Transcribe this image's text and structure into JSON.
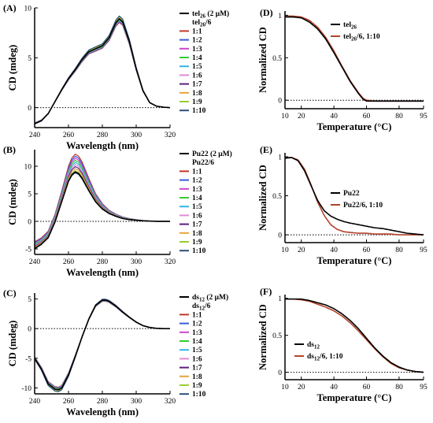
{
  "chart_data": [
    {
      "id": "A",
      "type": "line",
      "panel_label": "(A)",
      "xlabel": "Wavelength (nm)",
      "ylabel": "CD (mdeg)",
      "xlim": [
        240,
        320
      ],
      "ylim": [
        -2,
        10
      ],
      "xticks": [
        240,
        260,
        280,
        300,
        320
      ],
      "yticks": [
        0,
        5,
        10
      ],
      "zero_line": true,
      "legend": [
        {
          "label": "tel",
          "sub": "26",
          "suffix": " (2 μM)",
          "color": "#000000"
        },
        {
          "label": "tel",
          "sub": "26",
          "suffix": "/6",
          "color": "#000000",
          "no_line": true
        },
        {
          "label": "1:1",
          "color": "#c0392b"
        },
        {
          "label": "1:2",
          "color": "#3b5bdb"
        },
        {
          "label": "1:3",
          "color": "#cc44cc"
        },
        {
          "label": "1:4",
          "color": "#33cc33"
        },
        {
          "label": "1:5",
          "color": "#33b5e5"
        },
        {
          "label": "1:6",
          "color": "#e08bd4"
        },
        {
          "label": "1:7",
          "color": "#5b1f7a"
        },
        {
          "label": "1:8",
          "color": "#e8a33c"
        },
        {
          "label": "1:9",
          "color": "#9acd32"
        },
        {
          "label": "1:10",
          "color": "#2a4f7a"
        }
      ],
      "x": [
        240,
        244,
        248,
        252,
        256,
        260,
        264,
        268,
        272,
        276,
        280,
        284,
        288,
        290,
        292,
        296,
        300,
        304,
        308,
        312,
        316,
        320
      ],
      "base": [
        -1.6,
        -1.3,
        -0.6,
        0.6,
        1.8,
        2.9,
        3.8,
        4.8,
        5.6,
        5.9,
        6.2,
        7.0,
        8.5,
        8.9,
        8.6,
        6.6,
        3.9,
        1.7,
        0.5,
        0.15,
        0.05,
        0.0
      ]
    },
    {
      "id": "B",
      "type": "line",
      "panel_label": "(B)",
      "xlabel": "Wavelength (nm)",
      "ylabel": "CD (mdeg)",
      "xlim": [
        240,
        320
      ],
      "ylim": [
        -6,
        13
      ],
      "xticks": [
        240,
        260,
        280,
        300,
        320
      ],
      "yticks": [
        -5,
        0,
        5,
        10
      ],
      "zero_line": true,
      "legend": [
        {
          "label": "Pu22 (2 μM)",
          "color": "#000000"
        },
        {
          "label": "Pu22/6",
          "color": "#000000",
          "no_line": true
        },
        {
          "label": "1:1",
          "color": "#c0392b"
        },
        {
          "label": "1:2",
          "color": "#3b5bdb"
        },
        {
          "label": "1:3",
          "color": "#cc44cc"
        },
        {
          "label": "1:4",
          "color": "#33cc33"
        },
        {
          "label": "1:5",
          "color": "#33b5e5"
        },
        {
          "label": "1:6",
          "color": "#e08bd4"
        },
        {
          "label": "1:7",
          "color": "#5b1f7a"
        },
        {
          "label": "1:8",
          "color": "#e8a33c"
        },
        {
          "label": "1:9",
          "color": "#9acd32"
        },
        {
          "label": "1:10",
          "color": "#2a4f7a"
        }
      ],
      "x": [
        240,
        244,
        248,
        252,
        256,
        260,
        262,
        264,
        266,
        268,
        272,
        276,
        280,
        284,
        288,
        292,
        296,
        300,
        304,
        308,
        312,
        316,
        320
      ],
      "base_low": [
        -5.0,
        -4.2,
        -3.0,
        -0.2,
        3.5,
        7.2,
        8.3,
        8.8,
        8.5,
        7.7,
        5.5,
        3.5,
        2.2,
        1.4,
        0.9,
        0.5,
        0.3,
        0.2,
        0.1,
        0.05,
        0.0,
        0.0,
        0.0
      ],
      "base_high": [
        -3.7,
        -3.0,
        -1.8,
        1.2,
        5.5,
        10.0,
        11.5,
        12.2,
        11.8,
        10.8,
        7.8,
        5.0,
        3.2,
        2.0,
        1.3,
        0.8,
        0.5,
        0.3,
        0.15,
        0.05,
        0.0,
        0.0,
        0.0
      ]
    },
    {
      "id": "C",
      "type": "line",
      "panel_label": "(C)",
      "xlabel": "Wavelength (nm)",
      "ylabel": "CD (mdeg)",
      "xlim": [
        240,
        320
      ],
      "ylim": [
        -11,
        6
      ],
      "xticks": [
        240,
        260,
        280,
        300,
        320
      ],
      "yticks": [
        -10,
        -5,
        0,
        5
      ],
      "zero_line": true,
      "legend": [
        {
          "label": "ds",
          "sub": "12",
          "suffix": " (2 μM)",
          "color": "#000000"
        },
        {
          "label": "ds",
          "sub": "12",
          "suffix": "/6",
          "color": "#000000",
          "no_line": true
        },
        {
          "label": "1:1",
          "color": "#c0392b"
        },
        {
          "label": "1:2",
          "color": "#3b5bdb"
        },
        {
          "label": "1:3",
          "color": "#cc44cc"
        },
        {
          "label": "1:4",
          "color": "#33cc33"
        },
        {
          "label": "1:5",
          "color": "#33b5e5"
        },
        {
          "label": "1:6",
          "color": "#e08bd4"
        },
        {
          "label": "1:7",
          "color": "#5b1f7a"
        },
        {
          "label": "1:8",
          "color": "#e8a33c"
        },
        {
          "label": "1:9",
          "color": "#9acd32"
        },
        {
          "label": "1:10",
          "color": "#2a4f7a"
        }
      ],
      "x": [
        240,
        244,
        248,
        252,
        254,
        256,
        260,
        264,
        268,
        272,
        276,
        280,
        282,
        284,
        288,
        292,
        296,
        300,
        304,
        308,
        312,
        316,
        320
      ],
      "base": [
        -5.0,
        -6.8,
        -9.3,
        -10.2,
        -10.3,
        -10.0,
        -7.8,
        -4.7,
        -1.4,
        1.6,
        3.9,
        4.8,
        4.8,
        4.6,
        3.8,
        2.8,
        1.9,
        1.1,
        0.5,
        0.2,
        0.05,
        0.0,
        0.0
      ]
    },
    {
      "id": "D",
      "type": "line",
      "panel_label": "(D)",
      "xlabel": "Temperature (°C)",
      "ylabel": "Normalized CD",
      "xlim": [
        10,
        95
      ],
      "ylim": [
        -0.1,
        1.05
      ],
      "xticks": [
        10,
        20,
        40,
        60,
        80,
        95
      ],
      "yticks": [
        0,
        0.5,
        1
      ],
      "ytick_labels": [
        "0",
        "0.5",
        "1"
      ],
      "zero_line": true,
      "legend": [
        {
          "label": "tel",
          "sub": "26",
          "suffix": "",
          "color": "#000000"
        },
        {
          "label": "tel",
          "sub": "26",
          "suffix": "/6, 1:10",
          "color": "#b5422a"
        }
      ],
      "series": [
        {
          "name": "tel26",
          "color": "#000000",
          "x": [
            10,
            15,
            20,
            25,
            30,
            35,
            40,
            45,
            50,
            55,
            58,
            60,
            65,
            70,
            75,
            80,
            85,
            90,
            95
          ],
          "y": [
            0.98,
            0.98,
            0.97,
            0.92,
            0.84,
            0.72,
            0.56,
            0.39,
            0.22,
            0.08,
            0.01,
            -0.01,
            -0.01,
            -0.01,
            -0.01,
            -0.01,
            -0.01,
            -0.01,
            -0.01
          ]
        },
        {
          "name": "tel26/6, 1:10",
          "color": "#b5422a",
          "x": [
            10,
            15,
            20,
            25,
            30,
            35,
            40,
            45,
            50,
            55,
            58,
            60,
            65,
            70,
            75,
            80,
            85,
            90,
            95
          ],
          "y": [
            0.99,
            0.99,
            0.98,
            0.94,
            0.86,
            0.74,
            0.58,
            0.4,
            0.23,
            0.09,
            0.02,
            0.0,
            -0.01,
            -0.01,
            -0.01,
            -0.01,
            -0.01,
            -0.01,
            -0.01
          ]
        }
      ]
    },
    {
      "id": "E",
      "type": "line",
      "panel_label": "(E)",
      "xlabel": "Temperature (°C)",
      "ylabel": "Normalized CD",
      "xlim": [
        10,
        95
      ],
      "ylim": [
        -0.1,
        1.05
      ],
      "xticks": [
        10,
        20,
        40,
        60,
        80,
        95
      ],
      "yticks": [
        0,
        0.5,
        1
      ],
      "ytick_labels": [
        "0",
        "0.5",
        "1"
      ],
      "zero_line": true,
      "legend": [
        {
          "label": "Pu22",
          "color": "#000000"
        },
        {
          "label": "Pu22/6, 1:10",
          "color": "#b5422a"
        }
      ],
      "series": [
        {
          "name": "Pu22",
          "color": "#000000",
          "x": [
            10,
            14,
            18,
            22,
            26,
            30,
            34,
            38,
            42,
            46,
            50,
            55,
            60,
            65,
            70,
            75,
            80,
            85,
            90,
            95
          ],
          "y": [
            0.98,
            0.99,
            0.95,
            0.82,
            0.63,
            0.44,
            0.31,
            0.24,
            0.2,
            0.17,
            0.15,
            0.13,
            0.11,
            0.09,
            0.08,
            0.06,
            0.04,
            0.02,
            0.01,
            0.0
          ]
        },
        {
          "name": "Pu22/6, 1:10",
          "color": "#b5422a",
          "x": [
            10,
            14,
            18,
            22,
            26,
            30,
            34,
            38,
            42,
            46,
            50,
            55,
            60,
            65,
            70,
            75,
            80,
            85,
            90,
            95
          ],
          "y": [
            0.99,
            0.99,
            0.96,
            0.84,
            0.64,
            0.42,
            0.25,
            0.13,
            0.07,
            0.04,
            0.03,
            0.02,
            0.02,
            0.01,
            0.01,
            0.01,
            0.0,
            0.0,
            0.0,
            0.0
          ]
        }
      ]
    },
    {
      "id": "F",
      "type": "line",
      "panel_label": "(F)",
      "xlabel": "Temperature (°C)",
      "ylabel": "Normalized CD",
      "xlim": [
        10,
        95
      ],
      "ylim": [
        -0.1,
        1.05
      ],
      "xticks": [
        10,
        20,
        40,
        60,
        80,
        95
      ],
      "yticks": [
        0,
        0.5,
        1
      ],
      "ytick_labels": [
        "0",
        "0.5",
        "1"
      ],
      "zero_line": true,
      "legend": [
        {
          "label": "ds",
          "sub": "12",
          "suffix": "",
          "color": "#000000"
        },
        {
          "label": "ds",
          "sub": "12",
          "suffix": "/6, 1:10",
          "color": "#b5422a"
        }
      ],
      "series": [
        {
          "name": "ds12",
          "color": "#000000",
          "x": [
            10,
            15,
            20,
            25,
            30,
            35,
            40,
            45,
            50,
            55,
            60,
            65,
            70,
            75,
            80,
            85,
            90,
            95
          ],
          "y": [
            0.99,
            0.99,
            0.99,
            0.97,
            0.94,
            0.91,
            0.86,
            0.79,
            0.7,
            0.59,
            0.46,
            0.33,
            0.22,
            0.13,
            0.07,
            0.03,
            0.01,
            0.0
          ]
        },
        {
          "name": "ds12/6, 1:10",
          "color": "#b5422a",
          "x": [
            10,
            15,
            20,
            25,
            30,
            35,
            40,
            45,
            50,
            55,
            60,
            65,
            70,
            75,
            80,
            85,
            90,
            95
          ],
          "y": [
            0.99,
            0.99,
            0.98,
            0.96,
            0.92,
            0.88,
            0.83,
            0.76,
            0.67,
            0.56,
            0.44,
            0.32,
            0.21,
            0.12,
            0.06,
            0.03,
            0.01,
            0.0
          ]
        }
      ]
    }
  ]
}
